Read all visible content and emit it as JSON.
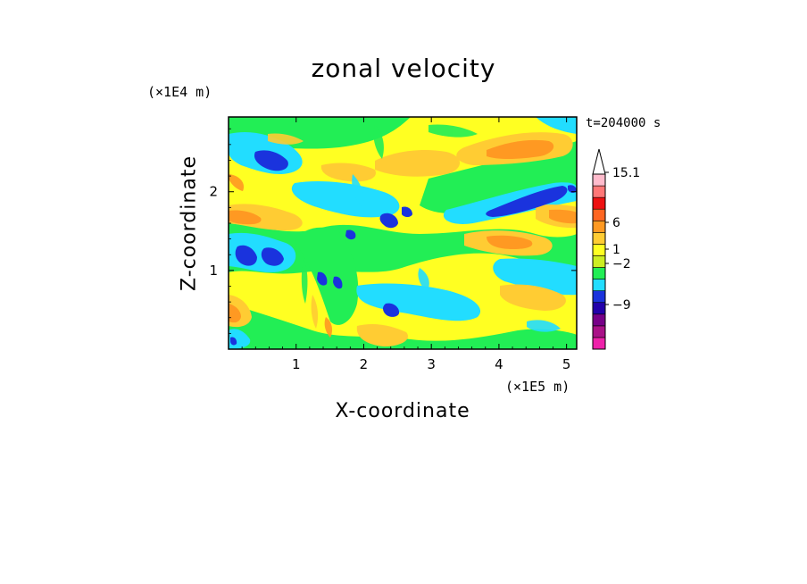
{
  "chart_data": {
    "type": "heatmap",
    "title": "zonal velocity",
    "xlabel": "X-coordinate",
    "ylabel": "Z-coordinate",
    "x_unit": "(×1E5 m)",
    "y_unit": "(×1E4 m)",
    "time_label": "t=204000 s",
    "xlim": [
      0,
      5.15
    ],
    "ylim": [
      0,
      2.95
    ],
    "x_ticks": [
      1,
      2,
      3,
      4,
      5
    ],
    "y_ticks": [
      1,
      2
    ],
    "colorbar": {
      "levels": [
        {
          "color": "#ee22aa"
        },
        {
          "color": "#aa1188"
        },
        {
          "color": "#770088"
        },
        {
          "color": "#2200aa"
        },
        {
          "color": "#1a33dd"
        },
        {
          "color": "#22ddff"
        },
        {
          "color": "#22ee55"
        },
        {
          "color": "#ccee22"
        },
        {
          "color": "#ffff22"
        },
        {
          "color": "#ffcc33"
        },
        {
          "color": "#ff9922"
        },
        {
          "color": "#ff6622"
        },
        {
          "color": "#ee1111"
        },
        {
          "color": "#ff7777"
        },
        {
          "color": "#ffbbcc"
        }
      ],
      "labels": [
        "15.1",
        "6",
        "1",
        "−2",
        "−9"
      ],
      "label_values": [
        15.1,
        6,
        1,
        -2,
        -9
      ]
    },
    "dominant_colors": {
      "strong_negative": "#1a33dd",
      "weak_negative": "#22ddff",
      "near_zero": "#22ee55",
      "weak_positive": "#ffff22",
      "moderate_positive": "#ffcc33",
      "strong_positive": "#ff9922"
    }
  }
}
